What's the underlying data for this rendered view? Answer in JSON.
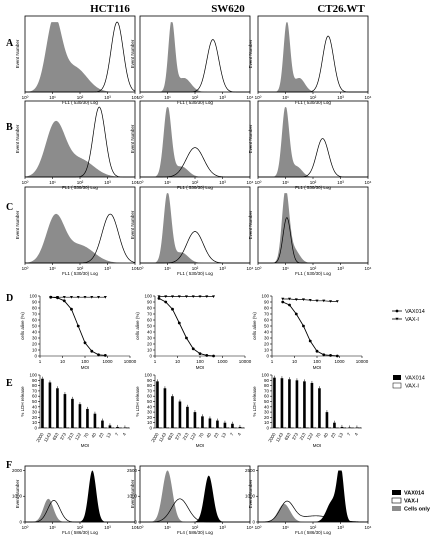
{
  "columns": [
    "HCT116",
    "SW620",
    "CT26.WT"
  ],
  "row_labels": [
    "A",
    "B",
    "C",
    "D",
    "E",
    "F"
  ],
  "flow": {
    "ylabel": "Event Number",
    "xlabel_abc": "FL1 ( 530/30)   Log",
    "xlabel_f": "FL4 ( 586/30)   Log",
    "x_ticks": [
      "10⁰",
      "10¹",
      "10²",
      "10³",
      "10⁴"
    ],
    "y_ticks_f": [
      [
        "0",
        "1000",
        "2000"
      ],
      [
        "0",
        "1000",
        "2500"
      ],
      [
        "0",
        "1000",
        "2500"
      ]
    ]
  },
  "chart_data": [
    {
      "type": "line",
      "panel": "D",
      "ylabel": "cells alive (%)",
      "xlabel": "MOI",
      "x_scale": "log",
      "x_ticks": [
        "1",
        "10",
        "100",
        "1000",
        "10000"
      ],
      "y_ticks": [
        "0",
        "10",
        "20",
        "30",
        "40",
        "50",
        "60",
        "70",
        "80",
        "90",
        "100"
      ],
      "ylim": [
        0,
        100
      ],
      "legend": [
        "VAX014",
        "VAX-I"
      ],
      "series": [
        {
          "name": "VAX014",
          "column": "HCT116",
          "x": [
            3,
            6,
            12,
            25,
            50,
            100,
            200,
            400,
            800
          ],
          "y": [
            98,
            97,
            92,
            78,
            50,
            22,
            8,
            2,
            1
          ]
        },
        {
          "name": "VAX-I",
          "column": "HCT116",
          "x": [
            3,
            6,
            12,
            25,
            50,
            100,
            200,
            400,
            800
          ],
          "y": [
            98,
            98,
            98,
            98,
            98,
            98,
            98,
            98,
            98
          ]
        },
        {
          "name": "VAX014",
          "column": "SW620",
          "x": [
            1.5,
            3,
            6,
            12,
            25,
            50,
            100,
            200,
            400
          ],
          "y": [
            96,
            90,
            78,
            55,
            30,
            12,
            4,
            1,
            0
          ]
        },
        {
          "name": "VAX-I",
          "column": "SW620",
          "x": [
            1.5,
            3,
            6,
            12,
            25,
            50,
            100,
            200,
            400
          ],
          "y": [
            99,
            99,
            99,
            99,
            99,
            99,
            99,
            99,
            99
          ]
        },
        {
          "name": "VAX014",
          "column": "CT26.WT",
          "x": [
            3,
            6,
            12,
            25,
            50,
            100,
            200,
            400,
            800
          ],
          "y": [
            90,
            85,
            70,
            50,
            25,
            8,
            2,
            1,
            0
          ]
        },
        {
          "name": "VAX-I",
          "column": "CT26.WT",
          "x": [
            3,
            6,
            12,
            25,
            50,
            100,
            200,
            400,
            800
          ],
          "y": [
            95,
            95,
            94,
            94,
            93,
            92,
            92,
            91,
            91
          ]
        }
      ]
    },
    {
      "type": "bar",
      "panel": "E",
      "ylabel": "% LDH release",
      "xlabel": "MOI",
      "y_ticks": [
        "0",
        "10",
        "20",
        "30",
        "40",
        "50",
        "60",
        "70",
        "80",
        "90",
        "100"
      ],
      "ylim": [
        0,
        100
      ],
      "categories": [
        "2000",
        "1143",
        "653",
        "373",
        "213",
        "122",
        "70",
        "40",
        "23",
        "13",
        "7",
        "4"
      ],
      "legend": [
        "VAX014",
        "VAX-I"
      ],
      "series": [
        {
          "name": "VAX014",
          "column": "HCT116",
          "values": [
            93,
            86,
            75,
            64,
            55,
            45,
            36,
            27,
            14,
            5,
            2,
            1
          ]
        },
        {
          "name": "VAX-I",
          "column": "HCT116",
          "values": [
            1,
            1,
            1,
            1,
            1,
            1,
            1,
            1,
            1,
            1,
            1,
            1
          ]
        },
        {
          "name": "VAX014",
          "column": "SW620",
          "values": [
            88,
            75,
            60,
            50,
            40,
            30,
            22,
            18,
            14,
            10,
            8,
            2
          ]
        },
        {
          "name": "VAX-I",
          "column": "SW620",
          "values": [
            1,
            1,
            1,
            1,
            1,
            1,
            1,
            1,
            1,
            1,
            1,
            1
          ]
        },
        {
          "name": "VAX014",
          "column": "CT26.WT",
          "values": [
            95,
            94,
            92,
            90,
            88,
            85,
            75,
            30,
            10,
            2,
            1,
            1
          ]
        },
        {
          "name": "VAX-I",
          "column": "CT26.WT",
          "values": [
            1,
            1,
            1,
            1,
            1,
            1,
            1,
            1,
            1,
            1,
            1,
            1
          ]
        }
      ]
    }
  ],
  "legend_f": [
    "VAX014",
    "VAX-I",
    "Cells only"
  ],
  "colors": {
    "fill_gray": "#8c8c8c",
    "fill_black": "#000000",
    "line": "#000000"
  }
}
